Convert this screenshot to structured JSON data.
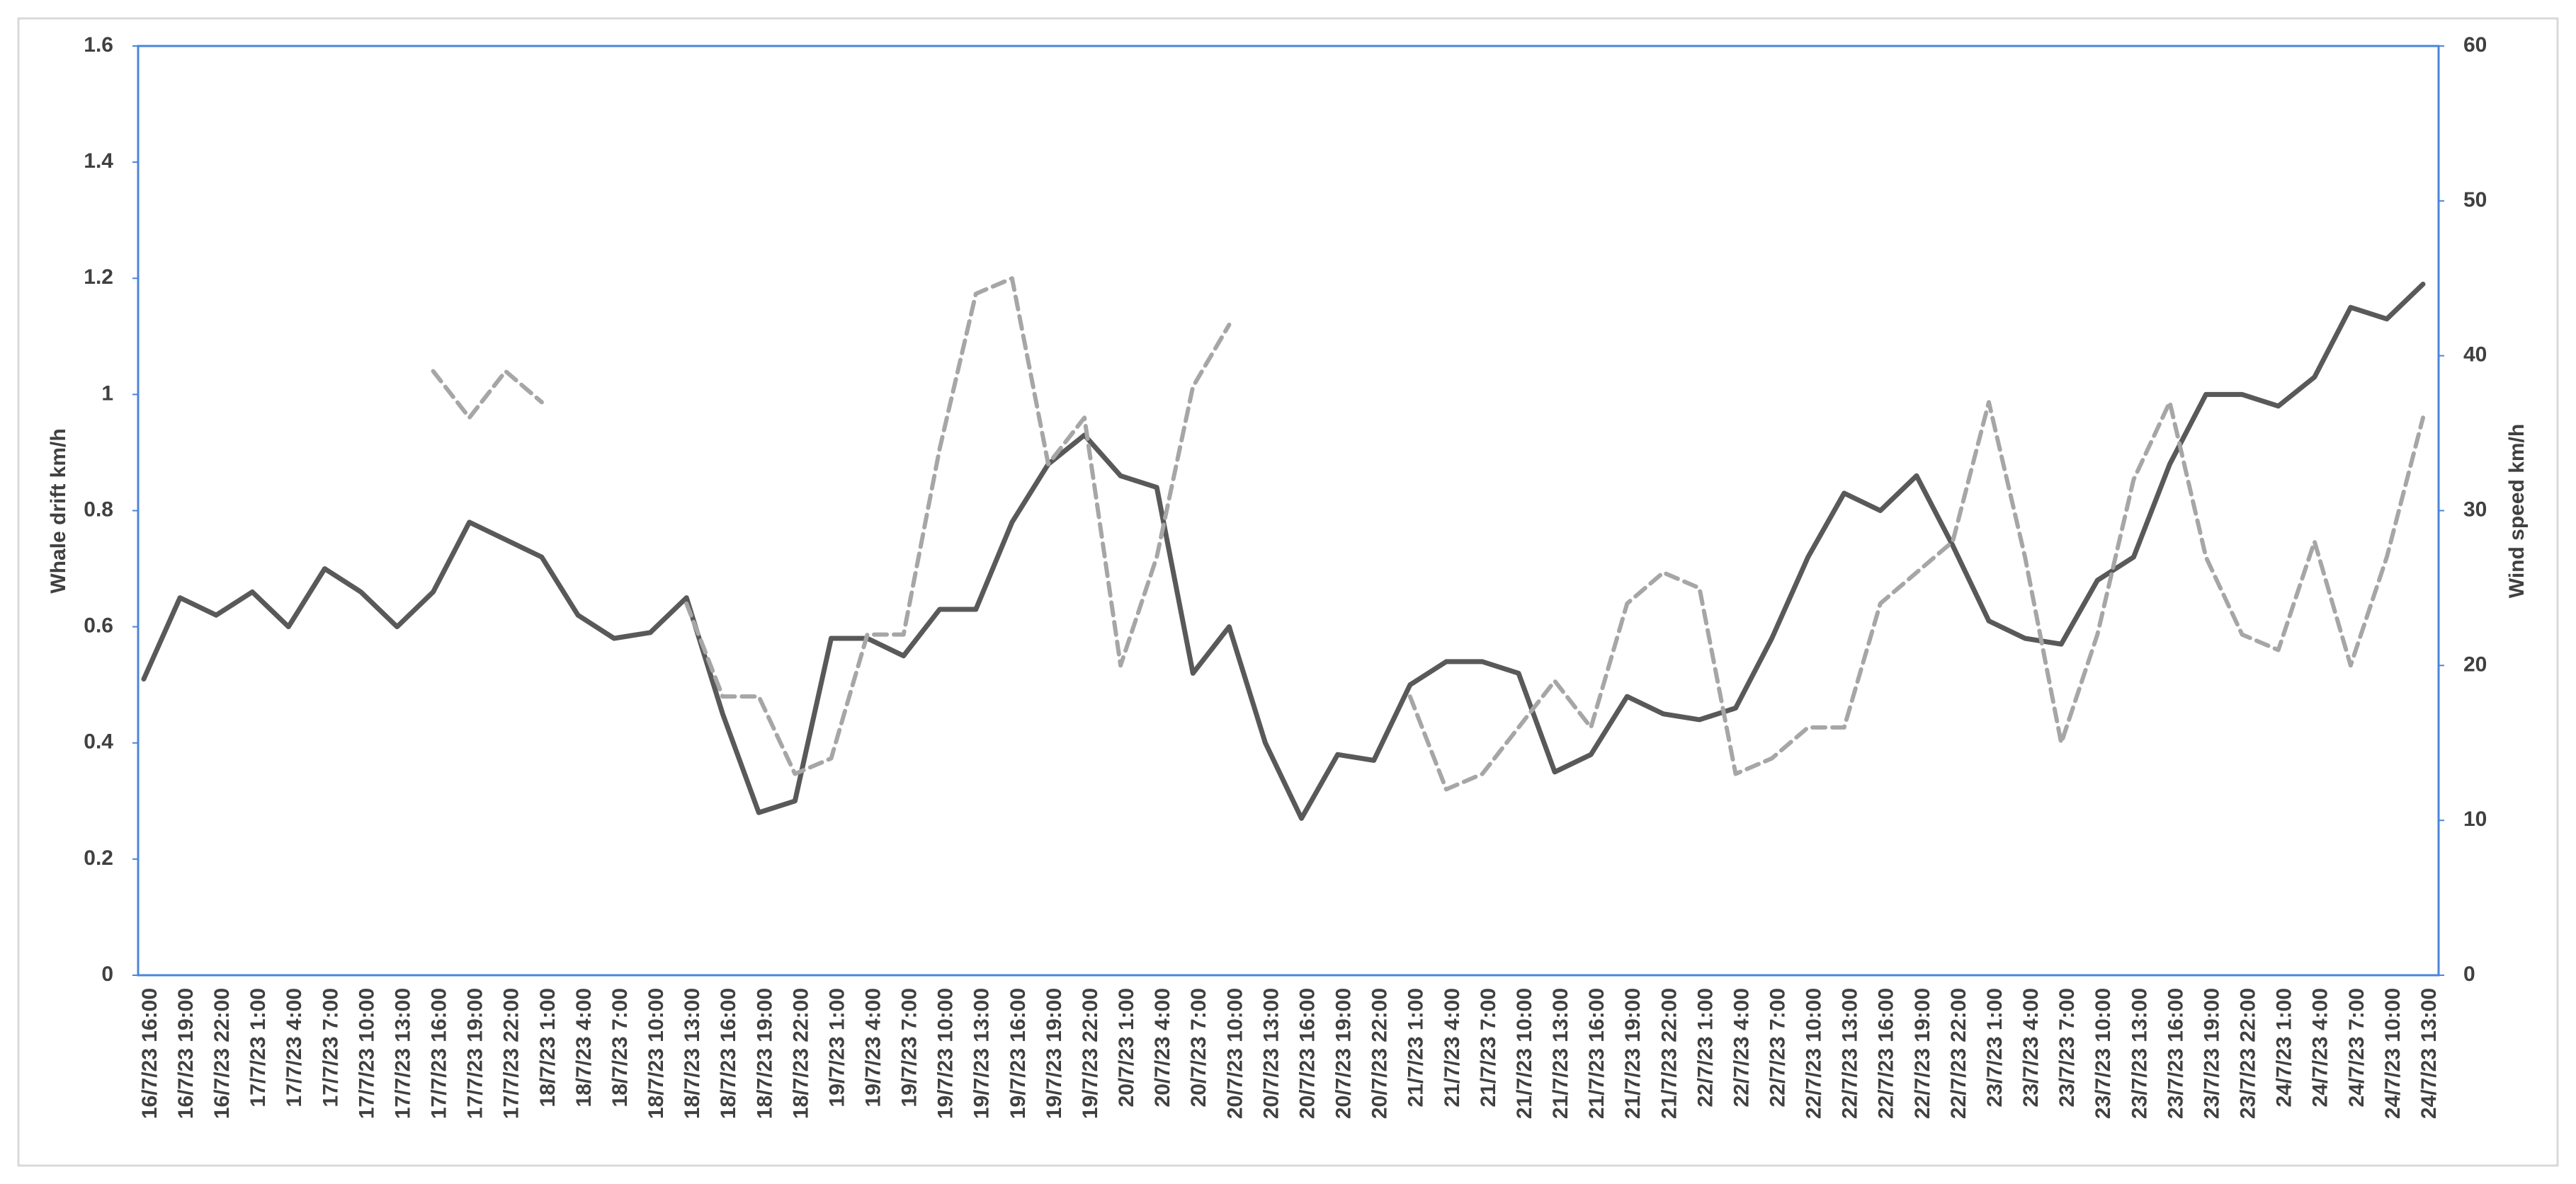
{
  "chart_data": {
    "type": "line",
    "y_label": "Whale drift km/h",
    "y2_label": "Wind speed km/h",
    "categories": [
      "16/7/23 16:00",
      "16/7/23 19:00",
      "16/7/23 22:00",
      "17/7/23 1:00",
      "17/7/23 4:00",
      "17/7/23 7:00",
      "17/7/23 10:00",
      "17/7/23 13:00",
      "17/7/23 16:00",
      "17/7/23 19:00",
      "17/7/23 22:00",
      "18/7/23 1:00",
      "18/7/23 4:00",
      "18/7/23 7:00",
      "18/7/23 10:00",
      "18/7/23 13:00",
      "18/7/23 16:00",
      "18/7/23 19:00",
      "18/7/23 22:00",
      "19/7/23 1:00",
      "19/7/23 4:00",
      "19/7/23 7:00",
      "19/7/23 10:00",
      "19/7/23 13:00",
      "19/7/23 16:00",
      "19/7/23 19:00",
      "19/7/23 22:00",
      "20/7/23 1:00",
      "20/7/23 4:00",
      "20/7/23 7:00",
      "20/7/23 10:00",
      "20/7/23 13:00",
      "20/7/23 16:00",
      "20/7/23 19:00",
      "20/7/23 22:00",
      "21/7/23 1:00",
      "21/7/23 4:00",
      "21/7/23 7:00",
      "21/7/23 10:00",
      "21/7/23 13:00",
      "21/7/23 16:00",
      "21/7/23 19:00",
      "21/7/23 22:00",
      "22/7/23 1:00",
      "22/7/23 4:00",
      "22/7/23 7:00",
      "22/7/23 10:00",
      "22/7/23 13:00",
      "22/7/23 16:00",
      "22/7/23 19:00",
      "22/7/23 22:00",
      "23/7/23 1:00",
      "23/7/23 4:00",
      "23/7/23 7:00",
      "23/7/23 10:00",
      "23/7/23 13:00",
      "23/7/23 16:00",
      "23/7/23 19:00",
      "23/7/23 22:00",
      "24/7/23 1:00",
      "24/7/23 4:00",
      "24/7/23 7:00",
      "24/7/23 10:00",
      "24/7/23 13:00"
    ],
    "series": [
      {
        "color": "#595959",
        "style": "solid",
        "values": [
          0.51,
          0.65,
          0.62,
          0.66,
          0.6,
          0.7,
          0.66,
          0.6,
          0.66,
          0.78,
          0.75,
          0.72,
          0.62,
          0.58,
          0.59,
          0.65,
          0.45,
          0.28,
          0.3,
          0.58,
          0.58,
          0.55,
          0.63,
          0.63,
          0.78,
          0.88,
          0.93,
          0.86,
          0.84,
          0.52,
          0.6,
          0.4,
          0.27,
          0.38,
          0.37,
          0.5,
          0.54,
          0.54,
          0.52,
          0.35,
          0.38,
          0.48,
          0.45,
          0.44,
          0.46,
          0.58,
          0.72,
          0.83,
          0.8,
          0.86,
          0.74,
          0.61,
          0.58,
          0.57,
          0.68,
          0.72,
          0.88,
          1.0,
          1.0,
          0.98,
          1.03,
          1.15,
          1.13,
          1.19
        ]
      },
      {
        "color": "#a6a6a6",
        "style": "dashed",
        "axis": "y2",
        "values": [
          null,
          null,
          null,
          null,
          null,
          null,
          null,
          null,
          39,
          36,
          39,
          37,
          null,
          null,
          null,
          24,
          18,
          18,
          13,
          14,
          22,
          22,
          34,
          44,
          45,
          33,
          36,
          20,
          27,
          38,
          42,
          null,
          null,
          null,
          null,
          18,
          12,
          13,
          16,
          19,
          16,
          24,
          26,
          25,
          13,
          14,
          16,
          16,
          24,
          26,
          28,
          37,
          27,
          15,
          22,
          32,
          37,
          27,
          22,
          21,
          28,
          20,
          27,
          36
        ]
      }
    ],
    "ylim": [
      0,
      1.6
    ],
    "yticks": [
      0,
      0.2,
      0.4,
      0.6,
      0.8,
      1,
      1.2,
      1.4,
      1.6
    ],
    "y2lim": [
      0,
      60
    ],
    "y2ticks": [
      0,
      10,
      20,
      30,
      40,
      50,
      60
    ]
  }
}
